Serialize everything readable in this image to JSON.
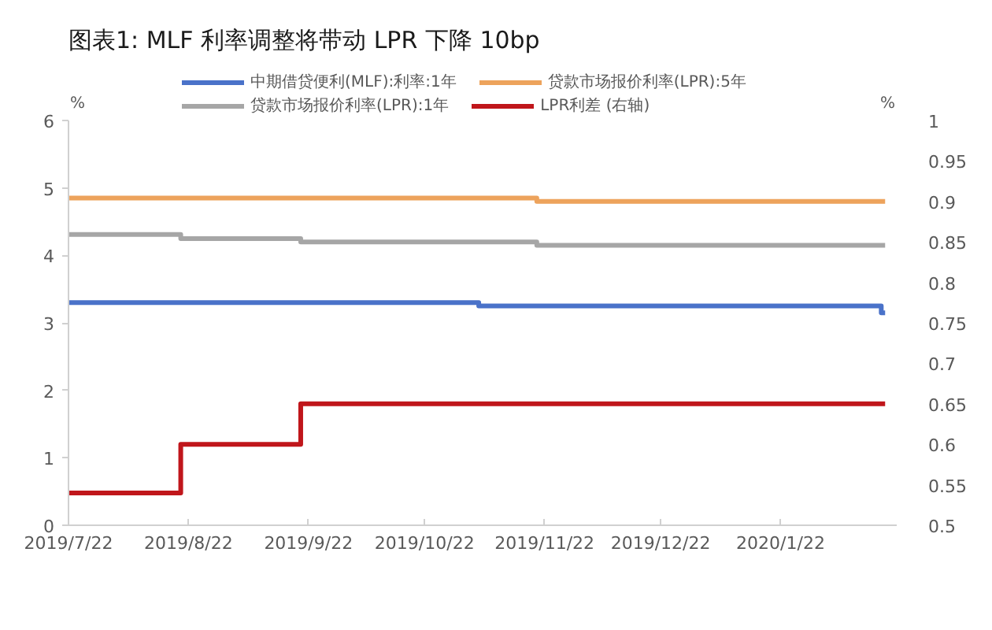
{
  "chart_data": {
    "type": "step",
    "title": "图表1:   MLF 利率调整将带动 LPR 下降 10bp",
    "ylabel": "%",
    "y2label": "%",
    "xlim": [
      "2019-07-22",
      "2020-02-21"
    ],
    "xticks": [
      {
        "value": "2019-07-22",
        "label": "2019/7/22"
      },
      {
        "value": "2019-08-22",
        "label": "2019/8/22"
      },
      {
        "value": "2019-09-22",
        "label": "2019/9/22"
      },
      {
        "value": "2019-10-22",
        "label": "2019/10/22"
      },
      {
        "value": "2019-11-22",
        "label": "2019/11/22"
      },
      {
        "value": "2019-12-22",
        "label": "2019/12/22"
      },
      {
        "value": "2020-01-22",
        "label": "2020/1/22"
      }
    ],
    "ylim": [
      0,
      6
    ],
    "yticks": [
      0,
      1,
      2,
      3,
      4,
      5,
      6
    ],
    "y2lim": [
      0.5,
      1
    ],
    "y2ticks": [
      0.5,
      0.55,
      0.6,
      0.65,
      0.7,
      0.75,
      0.8,
      0.85,
      0.9,
      0.95,
      1
    ],
    "grid": false,
    "legend": "top",
    "series": [
      {
        "name": "中期借贷便利(MLF):利率:1年",
        "color": "#4a72c9",
        "x": [
          "2019-07-22",
          "2019-11-05",
          "2020-02-17",
          "2020-02-18"
        ],
        "values": [
          3.3,
          3.25,
          3.15,
          3.15
        ]
      },
      {
        "name": "贷款市场报价利率(LPR):5年",
        "color": "#eda35c",
        "x": [
          "2019-07-22",
          "2019-11-20",
          "2020-02-18"
        ],
        "values": [
          4.85,
          4.8,
          4.8
        ]
      },
      {
        "name": "贷款市场报价利率(LPR):1年",
        "color": "#a6a6a6",
        "x": [
          "2019-07-22",
          "2019-08-20",
          "2019-09-20",
          "2019-11-20",
          "2020-02-18"
        ],
        "values": [
          4.31,
          4.25,
          4.2,
          4.15,
          4.15
        ]
      },
      {
        "name": "LPR利差 (右轴)",
        "color": "#c0161b",
        "axis": "y2",
        "x": [
          "2019-07-22",
          "2019-08-20",
          "2019-09-20",
          "2020-02-18"
        ],
        "values": [
          0.54,
          0.6,
          0.65,
          0.65
        ]
      }
    ]
  }
}
